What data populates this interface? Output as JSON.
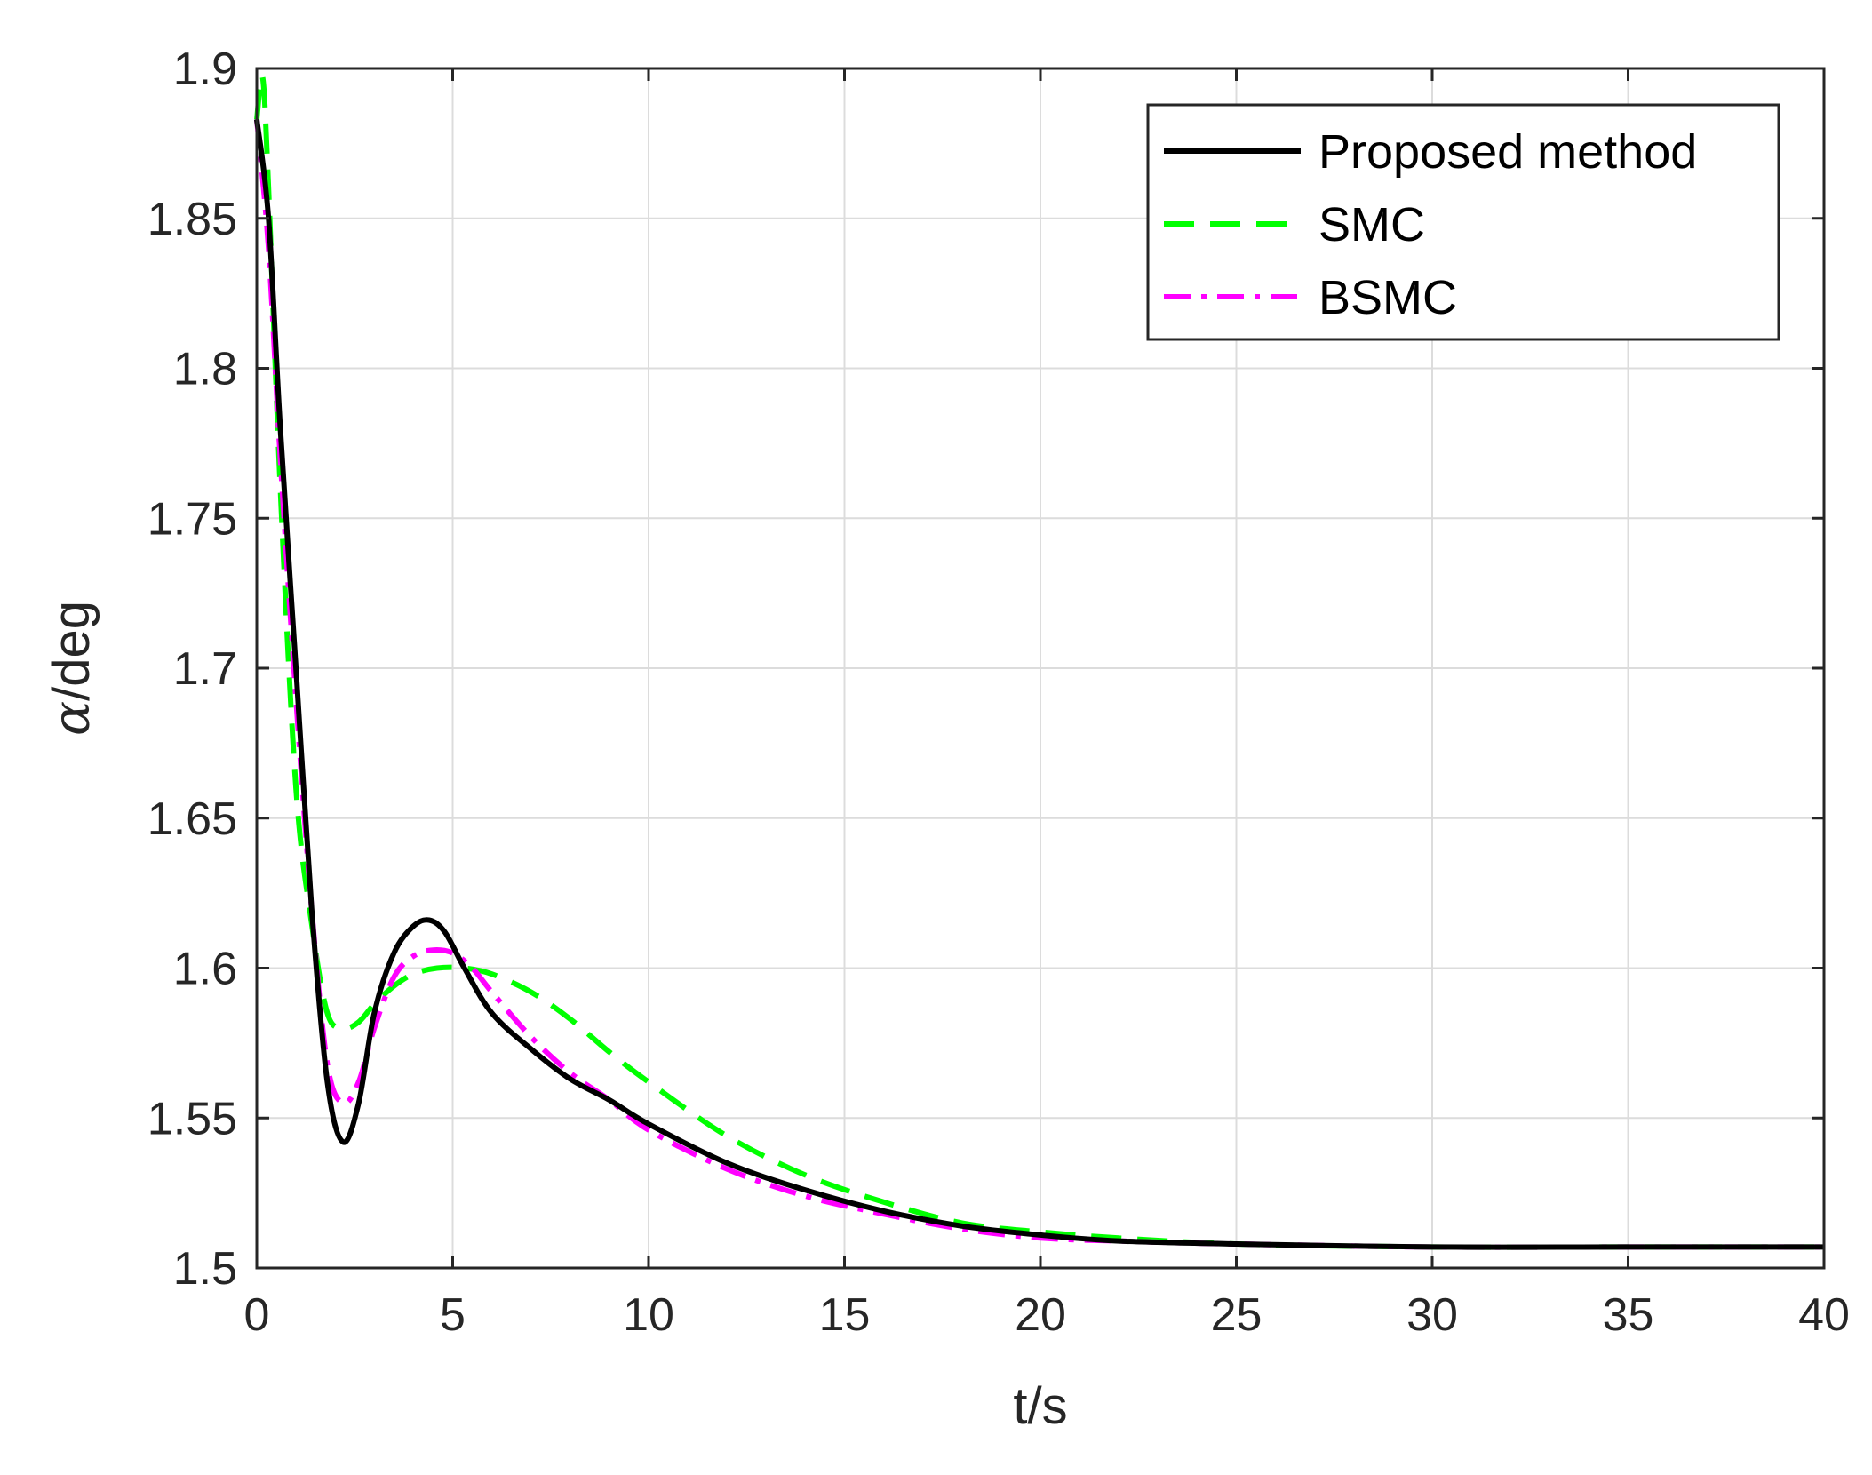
{
  "chart_data": {
    "type": "line",
    "xlabel": "t/s",
    "ylabel_symbol": "α",
    "ylabel_unit": "/deg",
    "xlim": [
      0,
      40
    ],
    "ylim": [
      1.5,
      1.9
    ],
    "xticks": [
      0,
      5,
      10,
      15,
      20,
      25,
      30,
      35,
      40
    ],
    "xtick_labels": [
      "0",
      "5",
      "10",
      "15",
      "20",
      "25",
      "30",
      "35",
      "40"
    ],
    "yticks": [
      1.5,
      1.55,
      1.6,
      1.65,
      1.7,
      1.75,
      1.8,
      1.85,
      1.9
    ],
    "ytick_labels": [
      "1.5",
      "1.55",
      "1.6",
      "1.65",
      "1.7",
      "1.75",
      "1.8",
      "1.85",
      "1.9"
    ],
    "grid": true,
    "legend_position": "top-right",
    "series": [
      {
        "name": "Proposed method",
        "color": "#000000",
        "dash": "solid",
        "x": [
          0,
          0.3,
          0.6,
          1.0,
          1.4,
          1.8,
          2.2,
          2.6,
          3.0,
          3.5,
          4.0,
          4.4,
          4.8,
          5.3,
          6.0,
          7.0,
          8.0,
          9.0,
          10.0,
          12.0,
          14.0,
          16.0,
          18.0,
          20.0,
          22.0,
          25.0,
          30.0,
          35.0,
          40.0
        ],
        "y": [
          1.883,
          1.85,
          1.78,
          1.7,
          1.62,
          1.562,
          1.542,
          1.555,
          1.585,
          1.605,
          1.614,
          1.616,
          1.612,
          1.6,
          1.585,
          1.573,
          1.563,
          1.556,
          1.548,
          1.535,
          1.526,
          1.519,
          1.514,
          1.511,
          1.509,
          1.508,
          1.507,
          1.507,
          1.507
        ]
      },
      {
        "name": "SMC",
        "color": "#00ff00",
        "dash": "dashed",
        "x": [
          0,
          0.15,
          0.3,
          0.6,
          1.0,
          1.4,
          1.8,
          2.2,
          2.6,
          3.0,
          3.5,
          4.0,
          4.6,
          5.3,
          6.0,
          7.0,
          8.0,
          9.0,
          10.0,
          12.0,
          14.0,
          16.0,
          18.0,
          20.0,
          22.0,
          25.0,
          30.0,
          35.0,
          40.0
        ],
        "y": [
          1.883,
          1.897,
          1.86,
          1.76,
          1.66,
          1.615,
          1.585,
          1.58,
          1.582,
          1.588,
          1.594,
          1.598,
          1.6,
          1.6,
          1.598,
          1.592,
          1.583,
          1.572,
          1.562,
          1.544,
          1.531,
          1.522,
          1.515,
          1.512,
          1.51,
          1.508,
          1.507,
          1.507,
          1.507
        ]
      },
      {
        "name": "BSMC",
        "color": "#ff00ff",
        "dash": "dashdot",
        "x": [
          0,
          0.3,
          0.6,
          1.0,
          1.4,
          1.8,
          2.2,
          2.6,
          3.0,
          3.5,
          4.0,
          4.5,
          5.0,
          5.5,
          6.0,
          7.0,
          8.0,
          9.0,
          10.0,
          12.0,
          14.0,
          16.0,
          18.0,
          20.0,
          22.0,
          25.0,
          30.0,
          35.0,
          40.0
        ],
        "y": [
          1.883,
          1.84,
          1.77,
          1.69,
          1.62,
          1.568,
          1.555,
          1.562,
          1.58,
          1.597,
          1.604,
          1.606,
          1.605,
          1.6,
          1.592,
          1.577,
          1.565,
          1.556,
          1.546,
          1.533,
          1.524,
          1.518,
          1.513,
          1.51,
          1.509,
          1.508,
          1.507,
          1.507,
          1.507
        ]
      }
    ]
  }
}
